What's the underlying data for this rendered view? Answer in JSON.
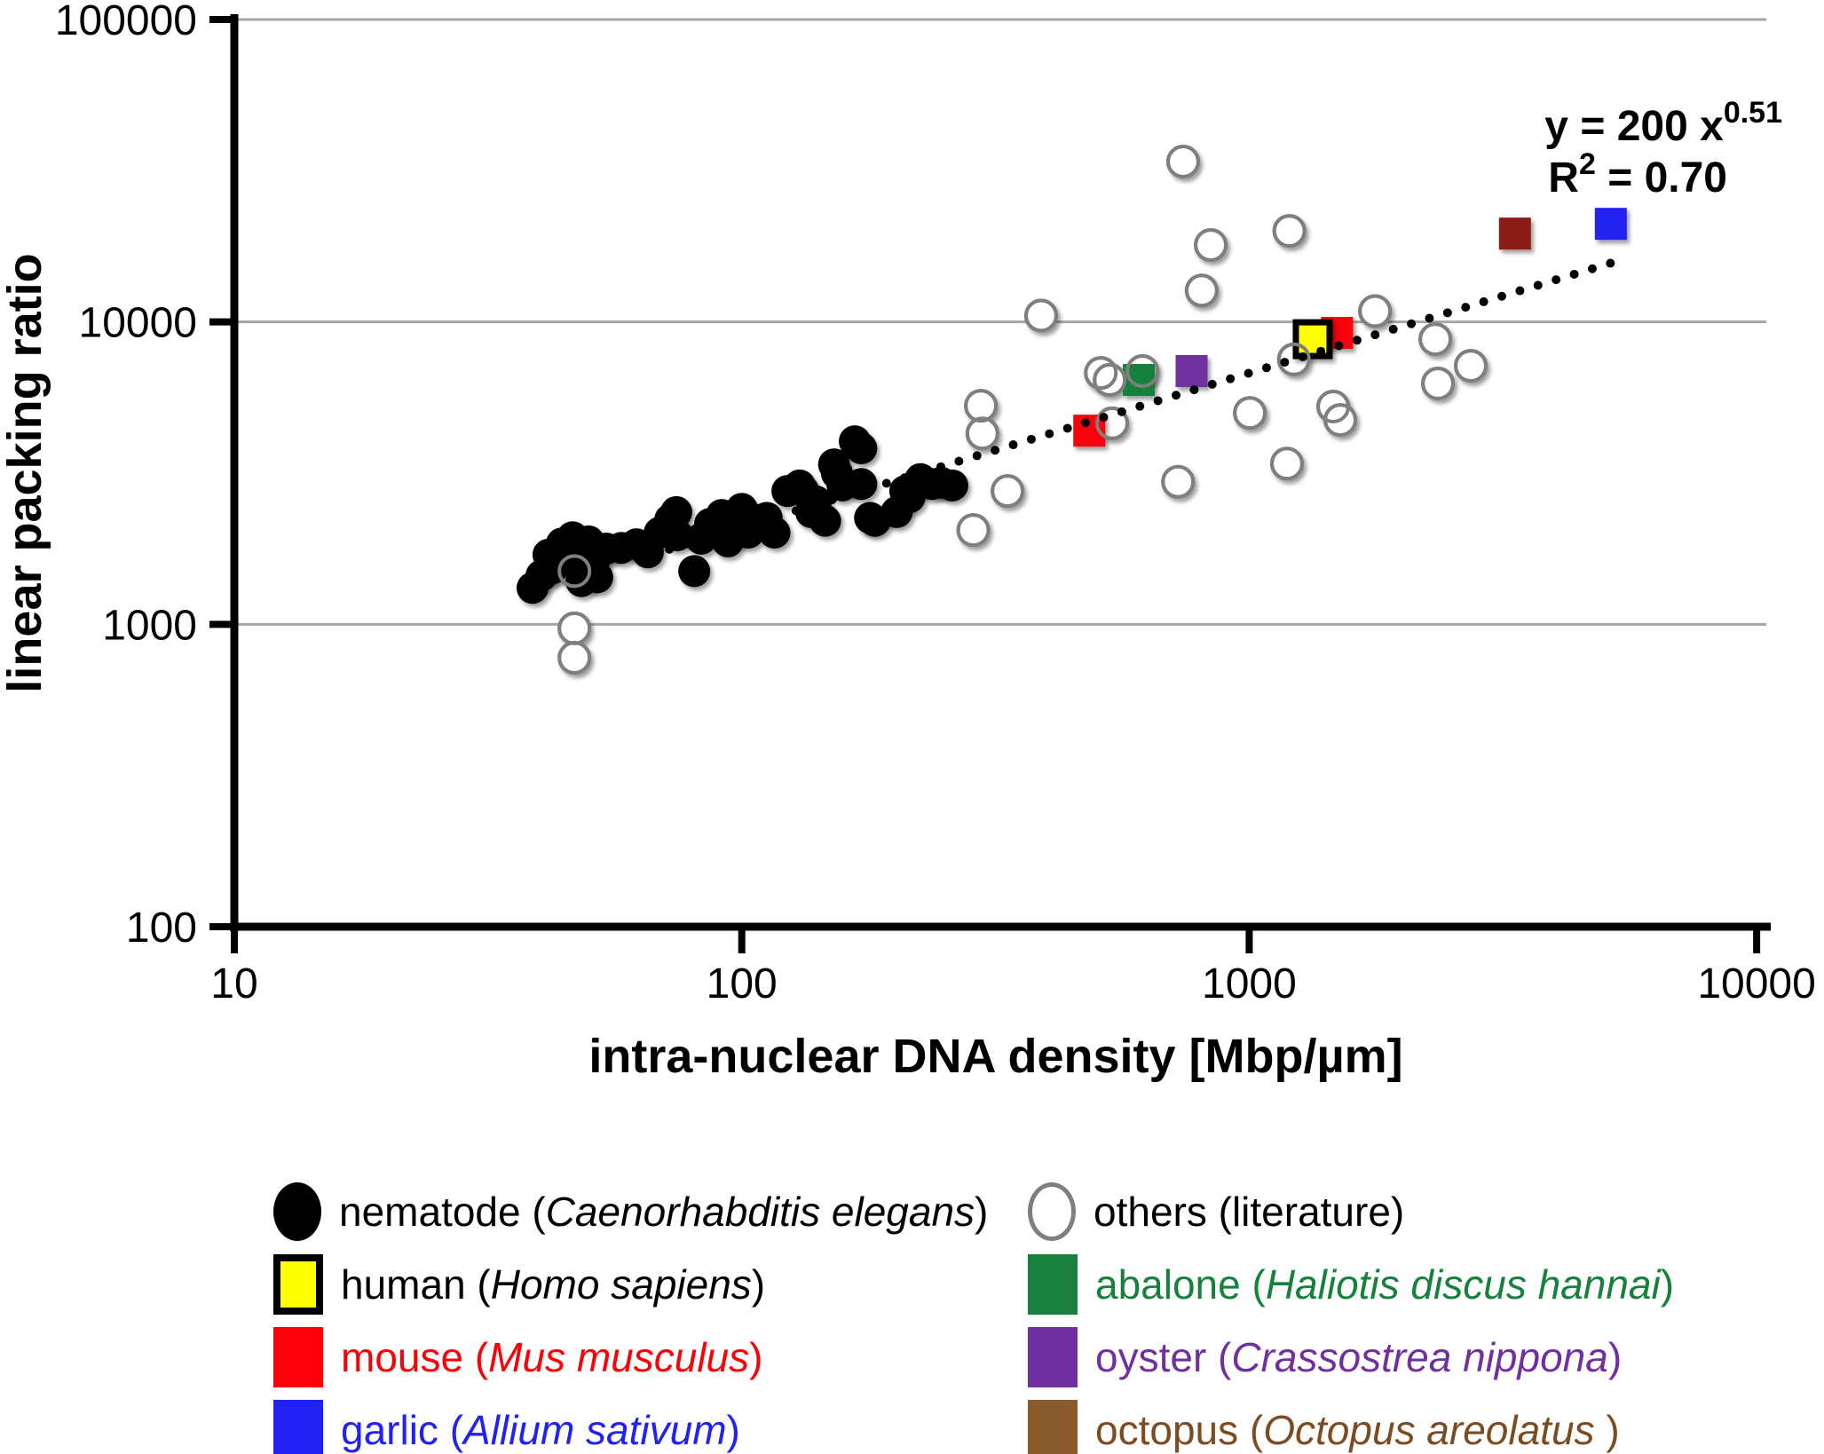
{
  "figure": {
    "equation": {
      "base": "y = 200 x",
      "exp": "0.51"
    },
    "r2": {
      "base": "R",
      "exp": "2",
      "rest": " = 0.70"
    }
  },
  "palette": {
    "axis": "#000000",
    "grid": "#a6a6a6",
    "nematode": "#000000",
    "others_stroke": "#7f7f7f",
    "human_fill": "#ffff00",
    "human_border": "#000000",
    "mouse": "#fb0007",
    "garlic": "#2121f3",
    "abalone": "#17803d",
    "oyster": "#7030a0",
    "octopus_plot": "#8e1b12",
    "octopus_legend": "#8a5a2b",
    "octopus_text": "#7d4b21"
  },
  "axes": {
    "x": {
      "label": "intra-nuclear DNA density [Mbp/µm]",
      "scale": "log",
      "ticks": [
        10,
        100,
        1000,
        10000
      ],
      "tick_labels": [
        "10",
        "100",
        "1000",
        "10000"
      ],
      "lim": [
        10,
        10000
      ]
    },
    "y": {
      "label": "linear packing ratio",
      "scale": "log",
      "ticks": [
        100,
        1000,
        10000,
        100000
      ],
      "tick_labels": [
        "100",
        "1000",
        "10000",
        "100000"
      ],
      "lim": [
        100,
        100000
      ],
      "gridlines": [
        1000,
        10000,
        100000
      ]
    }
  },
  "chart_data": {
    "type": "scatter",
    "title": "",
    "xlabel": "intra-nuclear DNA density [Mbp/µm]",
    "ylabel": "linear packing ratio",
    "xscale": "log",
    "yscale": "log",
    "xlim": [
      10,
      10000
    ],
    "ylim": [
      100,
      100000
    ],
    "grid": "horizontal-only",
    "legend_position": "below",
    "trendline": {
      "equation": "y = 200 x^0.51",
      "r_squared": 0.7,
      "a": 200,
      "b": 0.51,
      "style": "dotted",
      "color": "#000000",
      "x_range": [
        72,
        5150
      ]
    },
    "series": [
      {
        "id": "nematode",
        "name": "nematode (Caenorhabditis elegans)",
        "marker": "filled-circle",
        "color": "#000000",
        "points": [
          [
            38.7,
            1320
          ],
          [
            40.3,
            1450
          ],
          [
            41.6,
            1700
          ],
          [
            42.3,
            1530
          ],
          [
            44.2,
            1850
          ],
          [
            45.1,
            1720
          ],
          [
            46.4,
            1940
          ],
          [
            47.3,
            1590
          ],
          [
            48.3,
            1390
          ],
          [
            49.9,
            1880
          ],
          [
            51.3,
            1640
          ],
          [
            51.9,
            1430
          ],
          [
            54.1,
            1780
          ],
          [
            57.9,
            1790
          ],
          [
            62,
            1840
          ],
          [
            65.3,
            1730
          ],
          [
            68.9,
            2010
          ],
          [
            72.3,
            2220
          ],
          [
            74.3,
            2350
          ],
          [
            74.6,
            1970
          ],
          [
            80.6,
            1500
          ],
          [
            83.2,
            1920
          ],
          [
            86.6,
            2150
          ],
          [
            90.2,
            2040
          ],
          [
            91.3,
            2300
          ],
          [
            93.9,
            1880
          ],
          [
            97,
            2080
          ],
          [
            100,
            2410
          ],
          [
            103,
            2010
          ],
          [
            106,
            2220
          ],
          [
            112,
            2250
          ],
          [
            116,
            2010
          ],
          [
            123,
            2760
          ],
          [
            130,
            2880
          ],
          [
            132,
            2770
          ],
          [
            137,
            2350
          ],
          [
            140,
            2550
          ],
          [
            146,
            2200
          ],
          [
            152,
            3380
          ],
          [
            154,
            3160
          ],
          [
            158,
            2880
          ],
          [
            167,
            4030
          ],
          [
            172,
            3820
          ],
          [
            172,
            2910
          ],
          [
            179,
            2250
          ],
          [
            183,
            2200
          ],
          [
            202,
            2350
          ],
          [
            210,
            2760
          ],
          [
            214,
            2630
          ],
          [
            225,
            3020
          ],
          [
            237,
            2910
          ],
          [
            247,
            2940
          ],
          [
            260,
            2880
          ]
        ]
      },
      {
        "id": "others",
        "name": "others (literature)",
        "marker": "open-circle",
        "color": "#7f7f7f",
        "points": [
          [
            46.8,
            1500
          ],
          [
            46.8,
            970
          ],
          [
            46.8,
            775
          ],
          [
            296,
            5280
          ],
          [
            298,
            4280
          ],
          [
            334,
            2760
          ],
          [
            286,
            2050
          ],
          [
            389,
            10500
          ],
          [
            510,
            6780
          ],
          [
            531,
            6430
          ],
          [
            616,
            6880
          ],
          [
            537,
            4620
          ],
          [
            724,
            2960
          ],
          [
            741,
            33900
          ],
          [
            840,
            17960
          ],
          [
            806,
            12700
          ],
          [
            1200,
            20000
          ],
          [
            1225,
            7520
          ],
          [
            1003,
            5000
          ],
          [
            1187,
            3400
          ],
          [
            1464,
            5250
          ],
          [
            1512,
            4740
          ],
          [
            1770,
            10860
          ],
          [
            2327,
            8770
          ],
          [
            2733,
            7160
          ],
          [
            2355,
            6260
          ]
        ]
      },
      {
        "id": "abalone",
        "name": "abalone (Haliotis discus hannai)",
        "marker": "square",
        "color": "#17803d",
        "points": [
          [
            606,
            6430
          ]
        ]
      },
      {
        "id": "oyster",
        "name": "oyster (Crassostrea nippona)",
        "marker": "square",
        "color": "#7030a0",
        "points": [
          [
            770,
            6880
          ]
        ]
      },
      {
        "id": "mouse",
        "name": "mouse (Mus musculus)",
        "marker": "square",
        "color": "#fb0007",
        "points": [
          [
            484,
            4370
          ],
          [
            1490,
            9200
          ]
        ]
      },
      {
        "id": "human",
        "name": "human (Homo sapiens)",
        "marker": "bordered-square",
        "color": "#ffff00",
        "border": "#000000",
        "points": [
          [
            1334,
            8770
          ]
        ]
      },
      {
        "id": "octopus",
        "name": "octopus (Octopus areolatus)",
        "marker": "square",
        "color": "#8e1b12",
        "points": [
          [
            3340,
            19600
          ]
        ]
      },
      {
        "id": "garlic",
        "name": "garlic (Allium sativum)",
        "marker": "square",
        "color": "#2121f3",
        "points": [
          [
            5160,
            21100
          ]
        ]
      }
    ]
  },
  "legend": {
    "items": [
      {
        "id": "nematode",
        "prefix": "nematode (",
        "species": "Caenorhabditis elegans",
        "suffix": ")",
        "text_color": "#000000",
        "marker": "filled-circle",
        "marker_color": "#000000"
      },
      {
        "id": "human",
        "prefix": "human (",
        "species": "Homo sapiens",
        "suffix": ")",
        "text_color": "#000000",
        "marker": "bordered-square",
        "marker_color": "#ffff00",
        "border_color": "#000000"
      },
      {
        "id": "mouse",
        "prefix": "mouse (",
        "species": "Mus musculus",
        "suffix": ")",
        "text_color": "#fb0007",
        "marker": "square",
        "marker_color": "#fb0007"
      },
      {
        "id": "garlic",
        "prefix": "garlic (",
        "species": "Allium sativum",
        "suffix": ")",
        "text_color": "#2121f3",
        "marker": "square",
        "marker_color": "#2121f3"
      },
      {
        "id": "others",
        "prefix": "others (literature)",
        "species": "",
        "suffix": "",
        "text_color": "#000000",
        "marker": "open-circle",
        "marker_color": "#7f7f7f"
      },
      {
        "id": "abalone",
        "prefix": "abalone (",
        "species": "Haliotis discus hannai",
        "suffix": ")",
        "text_color": "#17803d",
        "marker": "square",
        "marker_color": "#17803d"
      },
      {
        "id": "oyster",
        "prefix": "oyster (",
        "species": "Crassostrea nippona",
        "suffix": ")",
        "text_color": "#7030a0",
        "marker": "square",
        "marker_color": "#7030a0"
      },
      {
        "id": "octopus",
        "prefix": "octopus (",
        "species": "Octopus areolatus",
        "suffix": " )",
        "text_color": "#7d4b21",
        "marker": "square",
        "marker_color": "#8a5a2b"
      }
    ]
  }
}
